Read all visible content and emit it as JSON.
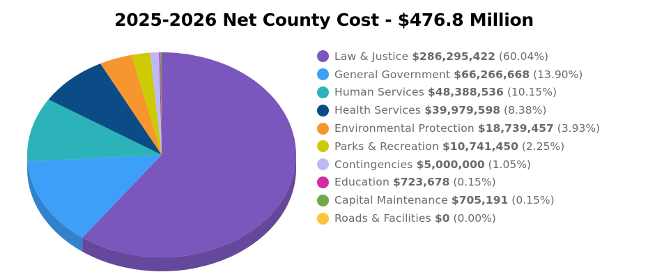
{
  "title": "2025-2026 Net County Cost - $476.8 Million",
  "chart_data": {
    "type": "pie",
    "title": "2025-2026 Net County Cost - $476.8 Million",
    "style": "3d",
    "legend_position": "right",
    "categories": [
      "Law & Justice",
      "General Government",
      "Human Services",
      "Health Services",
      "Environmental Protection",
      "Parks & Recreation",
      "Contingencies",
      "Education",
      "Capital Maintenance",
      "Roads & Facilities"
    ],
    "values": [
      286295422,
      66266668,
      48388536,
      39979598,
      18739457,
      10741450,
      5000000,
      723678,
      705191,
      0
    ],
    "percentages": [
      60.04,
      13.9,
      10.15,
      8.38,
      3.93,
      2.25,
      1.05,
      0.15,
      0.15,
      0.0
    ],
    "colors": [
      "#7b57bd",
      "#3d9ff7",
      "#2bb3b9",
      "#0c4c86",
      "#f7962f",
      "#cccb05",
      "#bcbaf6",
      "#d22aa7",
      "#72a944",
      "#fdc33a"
    ]
  },
  "legend": {
    "items": [
      {
        "label": "Law & Justice",
        "amount": "$286,295,422",
        "percent": "(60.04%)",
        "color": "#7b57bd"
      },
      {
        "label": "General Government",
        "amount": "$66,266,668",
        "percent": "(13.90%)",
        "color": "#3d9ff7"
      },
      {
        "label": "Human Services",
        "amount": "$48,388,536",
        "percent": "(10.15%)",
        "color": "#2bb3b9"
      },
      {
        "label": "Health Services",
        "amount": "$39,979,598",
        "percent": "(8.38%)",
        "color": "#0c4c86"
      },
      {
        "label": "Environmental Protection",
        "amount": "$18,739,457",
        "percent": "(3.93%)",
        "color": "#f7962f"
      },
      {
        "label": "Parks & Recreation",
        "amount": "$10,741,450",
        "percent": "(2.25%)",
        "color": "#cccb05"
      },
      {
        "label": "Contingencies",
        "amount": "$5,000,000",
        "percent": "(1.05%)",
        "color": "#bcbaf6"
      },
      {
        "label": "Education",
        "amount": "$723,678",
        "percent": "(0.15%)",
        "color": "#d22aa7"
      },
      {
        "label": "Capital Maintenance",
        "amount": "$705,191",
        "percent": "(0.15%)",
        "color": "#72a944"
      },
      {
        "label": "Roads & Facilities",
        "amount": "$0",
        "percent": "(0.00%)",
        "color": "#fdc33a"
      }
    ]
  }
}
